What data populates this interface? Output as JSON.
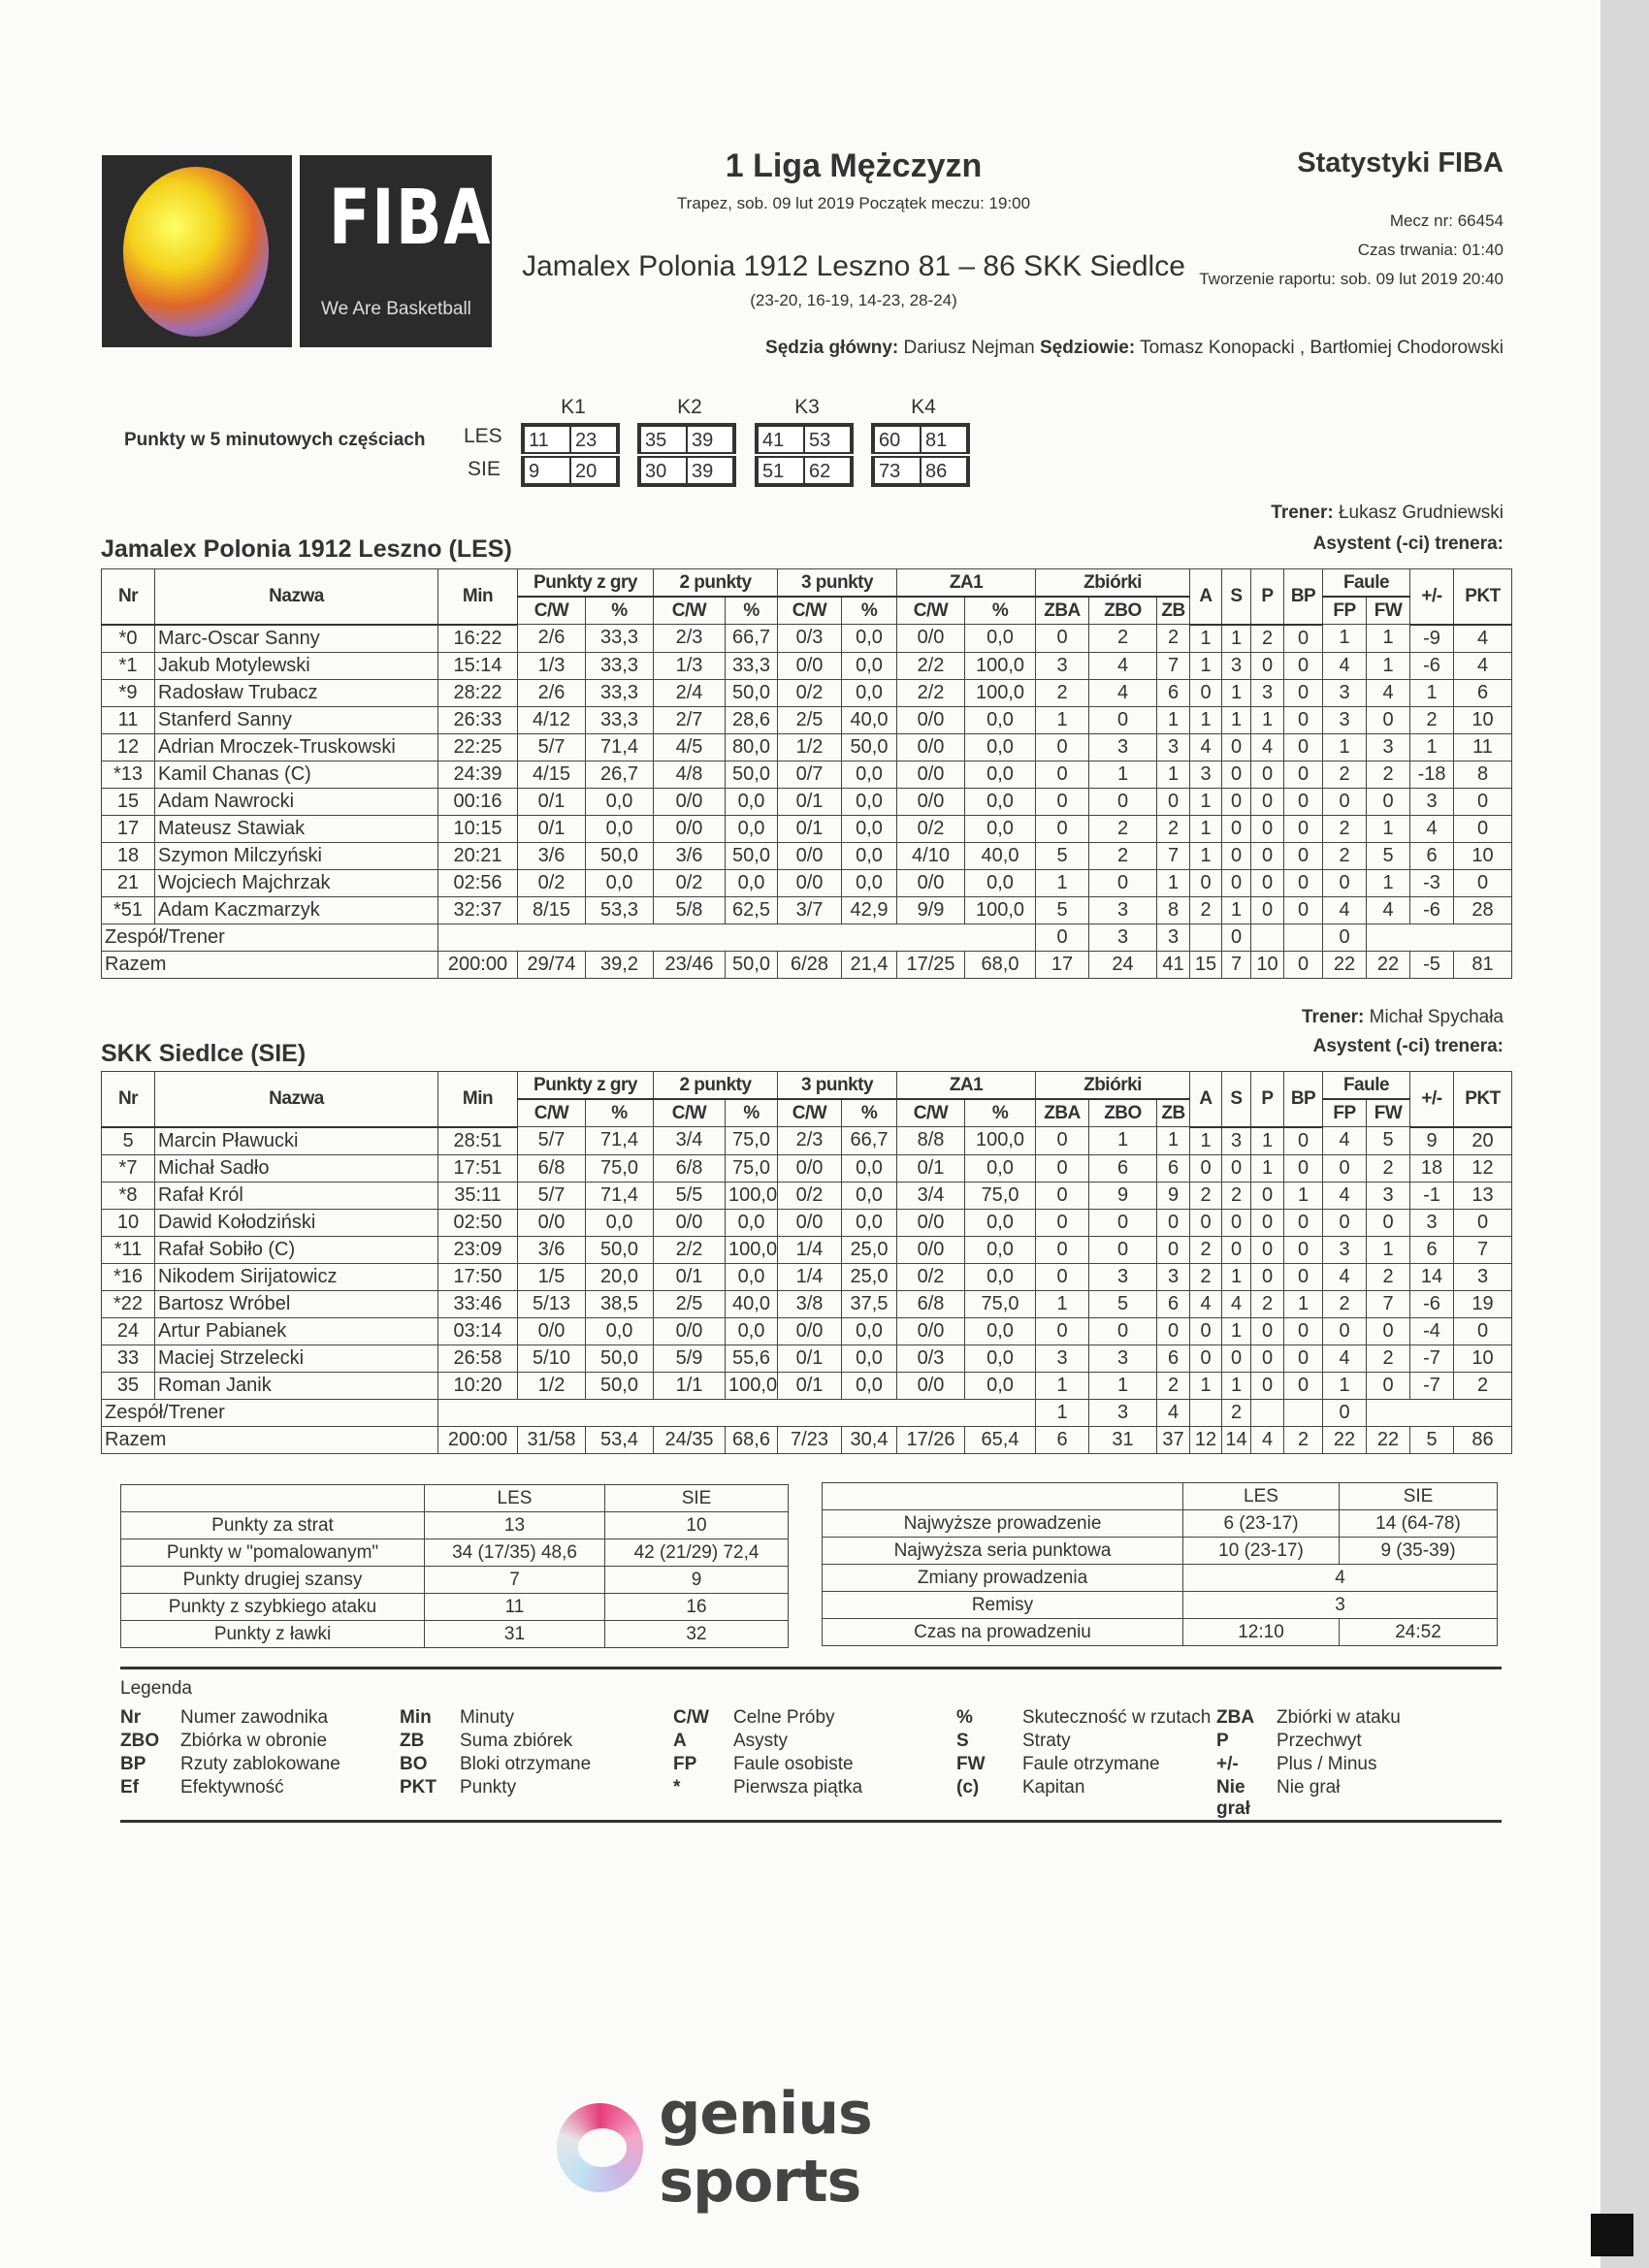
{
  "header": {
    "logo_text": "FIBA",
    "logo_tagline": "We Are Basketball",
    "competition": "1 Liga Mężczyzn",
    "venue_line": "Trapez, sob. 09 lut 2019 Początek meczu: 19:00",
    "match_line": "Jamalex Polonia 1912 Leszno 81 – 86 SKK Siedlce",
    "quarter_scores": "(23-20, 16-19, 14-23, 28-24)",
    "report_title": "Statystyki FIBA",
    "match_no": "Mecz nr: 66454",
    "duration": "Czas trwania: 01:40",
    "report_created": "Tworzenie raportu: sob. 09 lut 2019 20:40",
    "head_ref_label": "Sędzia główny:",
    "head_ref": "Dariusz Nejman",
    "refs_label": "Sędziowie:",
    "refs": "Tomasz Konopacki , Bartłomiej Chodorowski"
  },
  "five_min": {
    "label": "Punkty w 5 minutowych częściach",
    "quarters": [
      "K1",
      "K2",
      "K3",
      "K4"
    ],
    "teams": [
      {
        "code": "LES",
        "values": [
          [
            "11",
            "23"
          ],
          [
            "35",
            "39"
          ],
          [
            "41",
            "53"
          ],
          [
            "60",
            "81"
          ]
        ]
      },
      {
        "code": "SIE",
        "values": [
          [
            "9",
            "20"
          ],
          [
            "30",
            "39"
          ],
          [
            "51",
            "62"
          ],
          [
            "73",
            "86"
          ]
        ]
      }
    ]
  },
  "columns": {
    "nr": "Nr",
    "name": "Nazwa",
    "min": "Min",
    "fg": "Punkty z gry",
    "p2": "2 punkty",
    "p3": "3 punkty",
    "ft": "ZA1",
    "reb": "Zbiórki",
    "cw": "C/W",
    "pct": "%",
    "zba": "ZBA",
    "zbo": "ZBO",
    "zb": "ZB",
    "a": "A",
    "s": "S",
    "p": "P",
    "bp": "BP",
    "fouls": "Faule",
    "fp": "FP",
    "fw": "FW",
    "pm": "+/-",
    "pkt": "PKT"
  },
  "teams": [
    {
      "title": "Jamalex Polonia 1912 Leszno (LES)",
      "coach_label": "Trener:",
      "coach": "Łukasz Grudniewski",
      "assistant_label": "Asystent (-ci) trenera:",
      "players": [
        [
          "*0",
          "Marc-Oscar Sanny",
          "16:22",
          "2/6",
          "33,3",
          "2/3",
          "66,7",
          "0/3",
          "0,0",
          "0/0",
          "0,0",
          "0",
          "2",
          "2",
          "1",
          "1",
          "2",
          "0",
          "1",
          "1",
          "-9",
          "4"
        ],
        [
          "*1",
          "Jakub Motylewski",
          "15:14",
          "1/3",
          "33,3",
          "1/3",
          "33,3",
          "0/0",
          "0,0",
          "2/2",
          "100,0",
          "3",
          "4",
          "7",
          "1",
          "3",
          "0",
          "0",
          "4",
          "1",
          "-6",
          "4"
        ],
        [
          "*9",
          "Radosław Trubacz",
          "28:22",
          "2/6",
          "33,3",
          "2/4",
          "50,0",
          "0/2",
          "0,0",
          "2/2",
          "100,0",
          "2",
          "4",
          "6",
          "0",
          "1",
          "3",
          "0",
          "3",
          "4",
          "1",
          "6"
        ],
        [
          "11",
          "Stanferd Sanny",
          "26:33",
          "4/12",
          "33,3",
          "2/7",
          "28,6",
          "2/5",
          "40,0",
          "0/0",
          "0,0",
          "1",
          "0",
          "1",
          "1",
          "1",
          "1",
          "0",
          "3",
          "0",
          "2",
          "10"
        ],
        [
          "12",
          "Adrian Mroczek-Truskowski",
          "22:25",
          "5/7",
          "71,4",
          "4/5",
          "80,0",
          "1/2",
          "50,0",
          "0/0",
          "0,0",
          "0",
          "3",
          "3",
          "4",
          "0",
          "4",
          "0",
          "1",
          "3",
          "1",
          "11"
        ],
        [
          "*13",
          "Kamil Chanas (C)",
          "24:39",
          "4/15",
          "26,7",
          "4/8",
          "50,0",
          "0/7",
          "0,0",
          "0/0",
          "0,0",
          "0",
          "1",
          "1",
          "3",
          "0",
          "0",
          "0",
          "2",
          "2",
          "-18",
          "8"
        ],
        [
          "15",
          "Adam Nawrocki",
          "00:16",
          "0/1",
          "0,0",
          "0/0",
          "0,0",
          "0/1",
          "0,0",
          "0/0",
          "0,0",
          "0",
          "0",
          "0",
          "1",
          "0",
          "0",
          "0",
          "0",
          "0",
          "3",
          "0"
        ],
        [
          "17",
          "Mateusz Stawiak",
          "10:15",
          "0/1",
          "0,0",
          "0/0",
          "0,0",
          "0/1",
          "0,0",
          "0/2",
          "0,0",
          "0",
          "2",
          "2",
          "1",
          "0",
          "0",
          "0",
          "2",
          "1",
          "4",
          "0"
        ],
        [
          "18",
          "Szymon Milczyński",
          "20:21",
          "3/6",
          "50,0",
          "3/6",
          "50,0",
          "0/0",
          "0,0",
          "4/10",
          "40,0",
          "5",
          "2",
          "7",
          "1",
          "0",
          "0",
          "0",
          "2",
          "5",
          "6",
          "10"
        ],
        [
          "21",
          "Wojciech Majchrzak",
          "02:56",
          "0/2",
          "0,0",
          "0/2",
          "0,0",
          "0/0",
          "0,0",
          "0/0",
          "0,0",
          "1",
          "0",
          "1",
          "0",
          "0",
          "0",
          "0",
          "0",
          "1",
          "-3",
          "0"
        ],
        [
          "*51",
          "Adam Kaczmarzyk",
          "32:37",
          "8/15",
          "53,3",
          "5/8",
          "62,5",
          "3/7",
          "42,9",
          "9/9",
          "100,0",
          "5",
          "3",
          "8",
          "2",
          "1",
          "0",
          "0",
          "4",
          "4",
          "-6",
          "28"
        ]
      ],
      "team_row": {
        "label": "Zespół/Trener",
        "zba": "0",
        "zbo": "3",
        "zb": "3",
        "a": "",
        "s": "0",
        "p": "",
        "bp": "",
        "fp": "0"
      },
      "total": [
        "Razem",
        "200:00",
        "29/74",
        "39,2",
        "23/46",
        "50,0",
        "6/28",
        "21,4",
        "17/25",
        "68,0",
        "17",
        "24",
        "41",
        "15",
        "7",
        "10",
        "0",
        "22",
        "22",
        "-5",
        "81"
      ]
    },
    {
      "title": "SKK Siedlce (SIE)",
      "coach_label": "Trener:",
      "coach": "Michał Spychała",
      "assistant_label": "Asystent (-ci) trenera:",
      "players": [
        [
          "5",
          "Marcin Pławucki",
          "28:51",
          "5/7",
          "71,4",
          "3/4",
          "75,0",
          "2/3",
          "66,7",
          "8/8",
          "100,0",
          "0",
          "1",
          "1",
          "1",
          "3",
          "1",
          "0",
          "4",
          "5",
          "9",
          "20"
        ],
        [
          "*7",
          "Michał Sadło",
          "17:51",
          "6/8",
          "75,0",
          "6/8",
          "75,0",
          "0/0",
          "0,0",
          "0/1",
          "0,0",
          "0",
          "6",
          "6",
          "0",
          "0",
          "1",
          "0",
          "0",
          "2",
          "18",
          "12"
        ],
        [
          "*8",
          "Rafał Król",
          "35:11",
          "5/7",
          "71,4",
          "5/5",
          "100,0",
          "0/2",
          "0,0",
          "3/4",
          "75,0",
          "0",
          "9",
          "9",
          "2",
          "2",
          "0",
          "1",
          "4",
          "3",
          "-1",
          "13"
        ],
        [
          "10",
          "Dawid Kołodziński",
          "02:50",
          "0/0",
          "0,0",
          "0/0",
          "0,0",
          "0/0",
          "0,0",
          "0/0",
          "0,0",
          "0",
          "0",
          "0",
          "0",
          "0",
          "0",
          "0",
          "0",
          "0",
          "3",
          "0"
        ],
        [
          "*11",
          "Rafał Sobiło (C)",
          "23:09",
          "3/6",
          "50,0",
          "2/2",
          "100,0",
          "1/4",
          "25,0",
          "0/0",
          "0,0",
          "0",
          "0",
          "0",
          "2",
          "0",
          "0",
          "0",
          "3",
          "1",
          "6",
          "7"
        ],
        [
          "*16",
          "Nikodem Sirijatowicz",
          "17:50",
          "1/5",
          "20,0",
          "0/1",
          "0,0",
          "1/4",
          "25,0",
          "0/2",
          "0,0",
          "0",
          "3",
          "3",
          "2",
          "1",
          "0",
          "0",
          "4",
          "2",
          "14",
          "3"
        ],
        [
          "*22",
          "Bartosz Wróbel",
          "33:46",
          "5/13",
          "38,5",
          "2/5",
          "40,0",
          "3/8",
          "37,5",
          "6/8",
          "75,0",
          "1",
          "5",
          "6",
          "4",
          "4",
          "2",
          "1",
          "2",
          "7",
          "-6",
          "19"
        ],
        [
          "24",
          "Artur Pabianek",
          "03:14",
          "0/0",
          "0,0",
          "0/0",
          "0,0",
          "0/0",
          "0,0",
          "0/0",
          "0,0",
          "0",
          "0",
          "0",
          "0",
          "1",
          "0",
          "0",
          "0",
          "0",
          "-4",
          "0"
        ],
        [
          "33",
          "Maciej Strzelecki",
          "26:58",
          "5/10",
          "50,0",
          "5/9",
          "55,6",
          "0/1",
          "0,0",
          "0/3",
          "0,0",
          "3",
          "3",
          "6",
          "0",
          "0",
          "0",
          "0",
          "4",
          "2",
          "-7",
          "10"
        ],
        [
          "35",
          "Roman Janik",
          "10:20",
          "1/2",
          "50,0",
          "1/1",
          "100,0",
          "0/1",
          "0,0",
          "0/0",
          "0,0",
          "1",
          "1",
          "2",
          "1",
          "1",
          "0",
          "0",
          "1",
          "0",
          "-7",
          "2"
        ]
      ],
      "team_row": {
        "label": "Zespół/Trener",
        "zba": "1",
        "zbo": "3",
        "zb": "4",
        "a": "",
        "s": "2",
        "p": "",
        "bp": "",
        "fp": "0"
      },
      "total": [
        "Razem",
        "200:00",
        "31/58",
        "53,4",
        "24/35",
        "68,6",
        "7/23",
        "30,4",
        "17/26",
        "65,4",
        "6",
        "31",
        "37",
        "12",
        "14",
        "4",
        "2",
        "22",
        "22",
        "5",
        "86"
      ]
    }
  ],
  "summary_left": {
    "headers": [
      "",
      "LES",
      "SIE"
    ],
    "rows": [
      [
        "Punkty za strat",
        "13",
        "10"
      ],
      [
        "Punkty w \"pomalowanym\"",
        "34 (17/35) 48,6",
        "42 (21/29) 72,4"
      ],
      [
        "Punkty drugiej szansy",
        "7",
        "9"
      ],
      [
        "Punkty z szybkiego ataku",
        "11",
        "16"
      ],
      [
        "Punkty z ławki",
        "31",
        "32"
      ]
    ]
  },
  "summary_right": {
    "headers": [
      "",
      "LES",
      "SIE"
    ],
    "rows": [
      [
        "Najwyższe prowadzenie",
        "6 (23-17)",
        "14 (64-78)"
      ],
      [
        "Najwyższa seria punktowa",
        "10 (23-17)",
        "9 (35-39)"
      ],
      [
        "Zmiany prowadzenia",
        "4"
      ],
      [
        "Remisy",
        "3"
      ],
      [
        "Czas na prowadzeniu",
        "12:10",
        "24:52"
      ]
    ]
  },
  "legend": {
    "title": "Legenda",
    "items": [
      [
        "Nr",
        "Numer zawodnika"
      ],
      [
        "Min",
        "Minuty"
      ],
      [
        "C/W",
        "Celne Próby"
      ],
      [
        "%",
        "Skuteczność w rzutach"
      ],
      [
        "ZBA",
        "Zbiórki w ataku"
      ],
      [
        "ZBO",
        "Zbiórka w obronie"
      ],
      [
        "ZB",
        "Suma zbiórek"
      ],
      [
        "A",
        "Asysty"
      ],
      [
        "S",
        "Straty"
      ],
      [
        "P",
        "Przechwyt"
      ],
      [
        "BP",
        "Rzuty zablokowane"
      ],
      [
        "BO",
        "Bloki otrzymane"
      ],
      [
        "FP",
        "Faule osobiste"
      ],
      [
        "FW",
        "Faule otrzymane"
      ],
      [
        "+/-",
        "Plus / Minus"
      ],
      [
        "Ef",
        "Efektywność"
      ],
      [
        "PKT",
        "Punkty"
      ],
      [
        "*",
        "Pierwsza piątka"
      ],
      [
        "(c)",
        "Kapitan"
      ],
      [
        "Nie grał",
        "Nie grał"
      ]
    ]
  },
  "footer": {
    "brand": "genius sports"
  }
}
